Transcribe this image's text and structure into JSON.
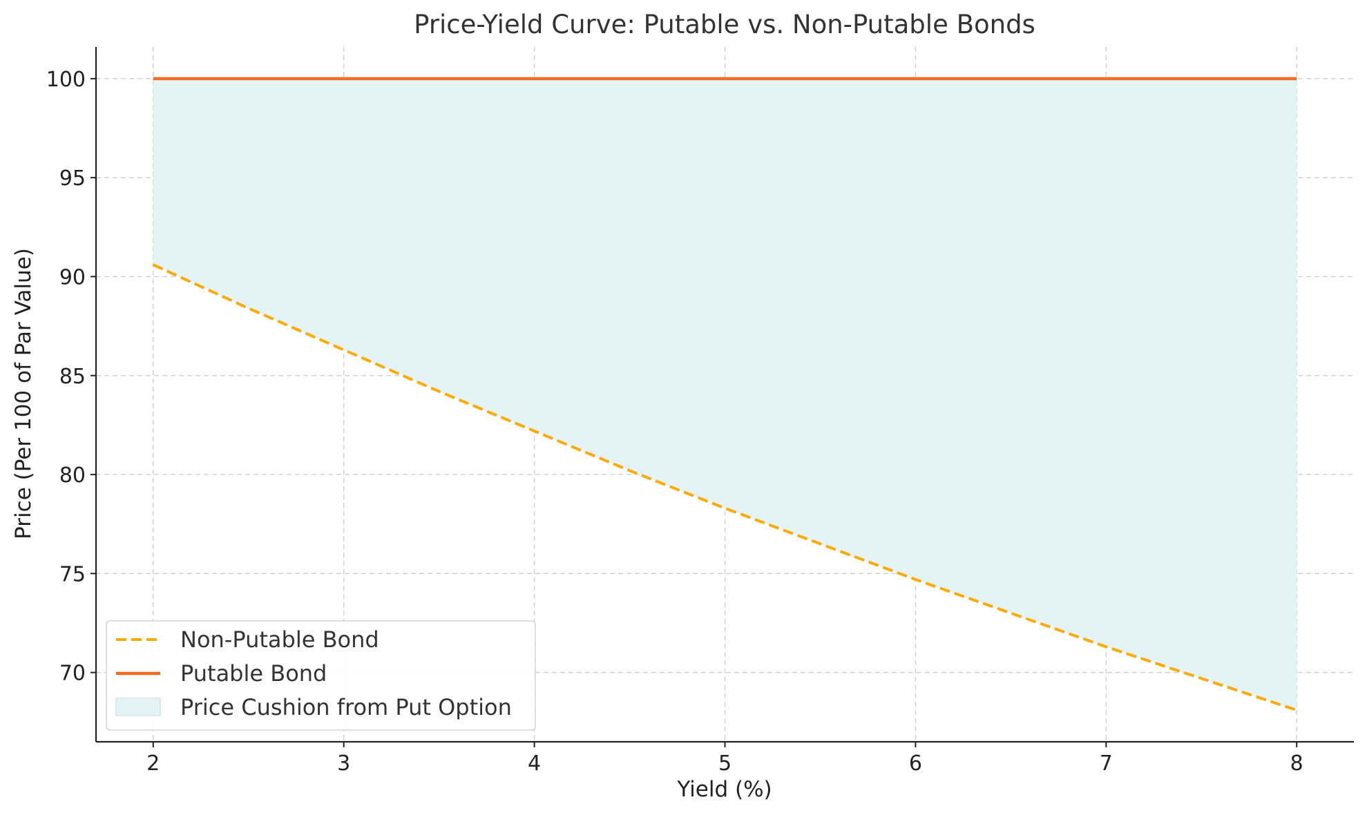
{
  "chart_data": {
    "type": "line",
    "title": "Price-Yield Curve: Putable vs. Non-Putable Bonds",
    "xlabel": "Yield (%)",
    "ylabel": "Price (Per 100 of Par Value)",
    "xlim": [
      1.7,
      8.3
    ],
    "ylim": [
      66.5,
      101.6
    ],
    "xticks": [
      2,
      3,
      4,
      5,
      6,
      7,
      8
    ],
    "yticks": [
      70,
      75,
      80,
      85,
      90,
      95,
      100
    ],
    "grid": true,
    "legend_position": "lower-left",
    "x": [
      2.0,
      2.5,
      3.0,
      3.5,
      4.0,
      4.5,
      5.0,
      5.5,
      6.0,
      6.5,
      7.0,
      7.5,
      8.0
    ],
    "series": [
      {
        "name": "Non-Putable Bond",
        "style": "dashed",
        "color": "#FFAA00",
        "values": [
          90.6,
          88.4,
          86.3,
          84.2,
          82.2,
          80.2,
          78.3,
          76.5,
          74.7,
          73.0,
          71.3,
          69.7,
          68.1
        ]
      },
      {
        "name": "Putable Bond",
        "style": "solid",
        "color": "#F26B21",
        "values": [
          100,
          100,
          100,
          100,
          100,
          100,
          100,
          100,
          100,
          100,
          100,
          100,
          100
        ]
      }
    ],
    "fill": {
      "name": "Price Cushion from Put Option",
      "color": "#E4F3F6",
      "between": [
        "Non-Putable Bond",
        "Putable Bond"
      ]
    }
  }
}
